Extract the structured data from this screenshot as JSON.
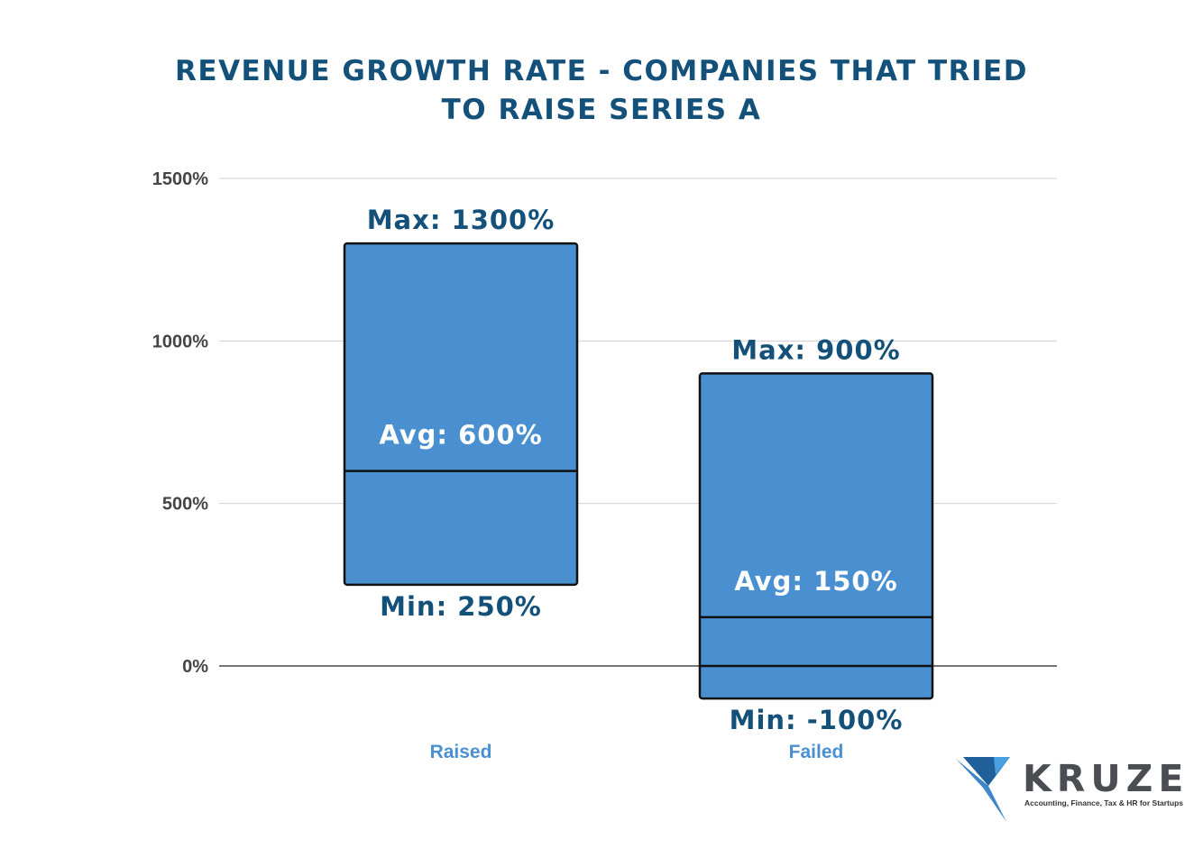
{
  "chart_data": {
    "type": "bar",
    "title": "REVENUE GROWTH RATE - COMPANIES THAT TRIED TO RAISE SERIES A",
    "title_lines": [
      "REVENUE GROWTH RATE - COMPANIES THAT TRIED",
      "TO RAISE SERIES A"
    ],
    "categories": [
      "Raised",
      "Failed"
    ],
    "series": [
      {
        "values": [
          {
            "min": 250,
            "avg": 600,
            "max": 1300,
            "label_min": "Min: 250%",
            "label_avg": "Avg: 600%",
            "label_max": "Max: 1300%"
          },
          {
            "min": -100,
            "avg": 150,
            "max": 900,
            "label_min": "Min: -100%",
            "label_avg": "Avg: 150%",
            "label_max": "Max: 900%"
          }
        ]
      }
    ],
    "y_ticks": [
      0,
      500,
      1000,
      1500
    ],
    "y_tick_labels": [
      "0%",
      "500%",
      "1000%",
      "1500%"
    ],
    "ylim": [
      -100,
      1500
    ],
    "grid": true,
    "legend": "none",
    "colors": {
      "bar_fill": "#4a90d0",
      "bar_stroke": "#111111",
      "title": "#13507a",
      "category_label": "#4a90d0",
      "grid": "#d0d0d0",
      "zero_line": "#222222"
    }
  },
  "logo": {
    "wordmark": "KRUZE",
    "tagline": "Accounting, Finance, Tax & HR for Startups",
    "icon": "kruze-k-mark-icon"
  }
}
